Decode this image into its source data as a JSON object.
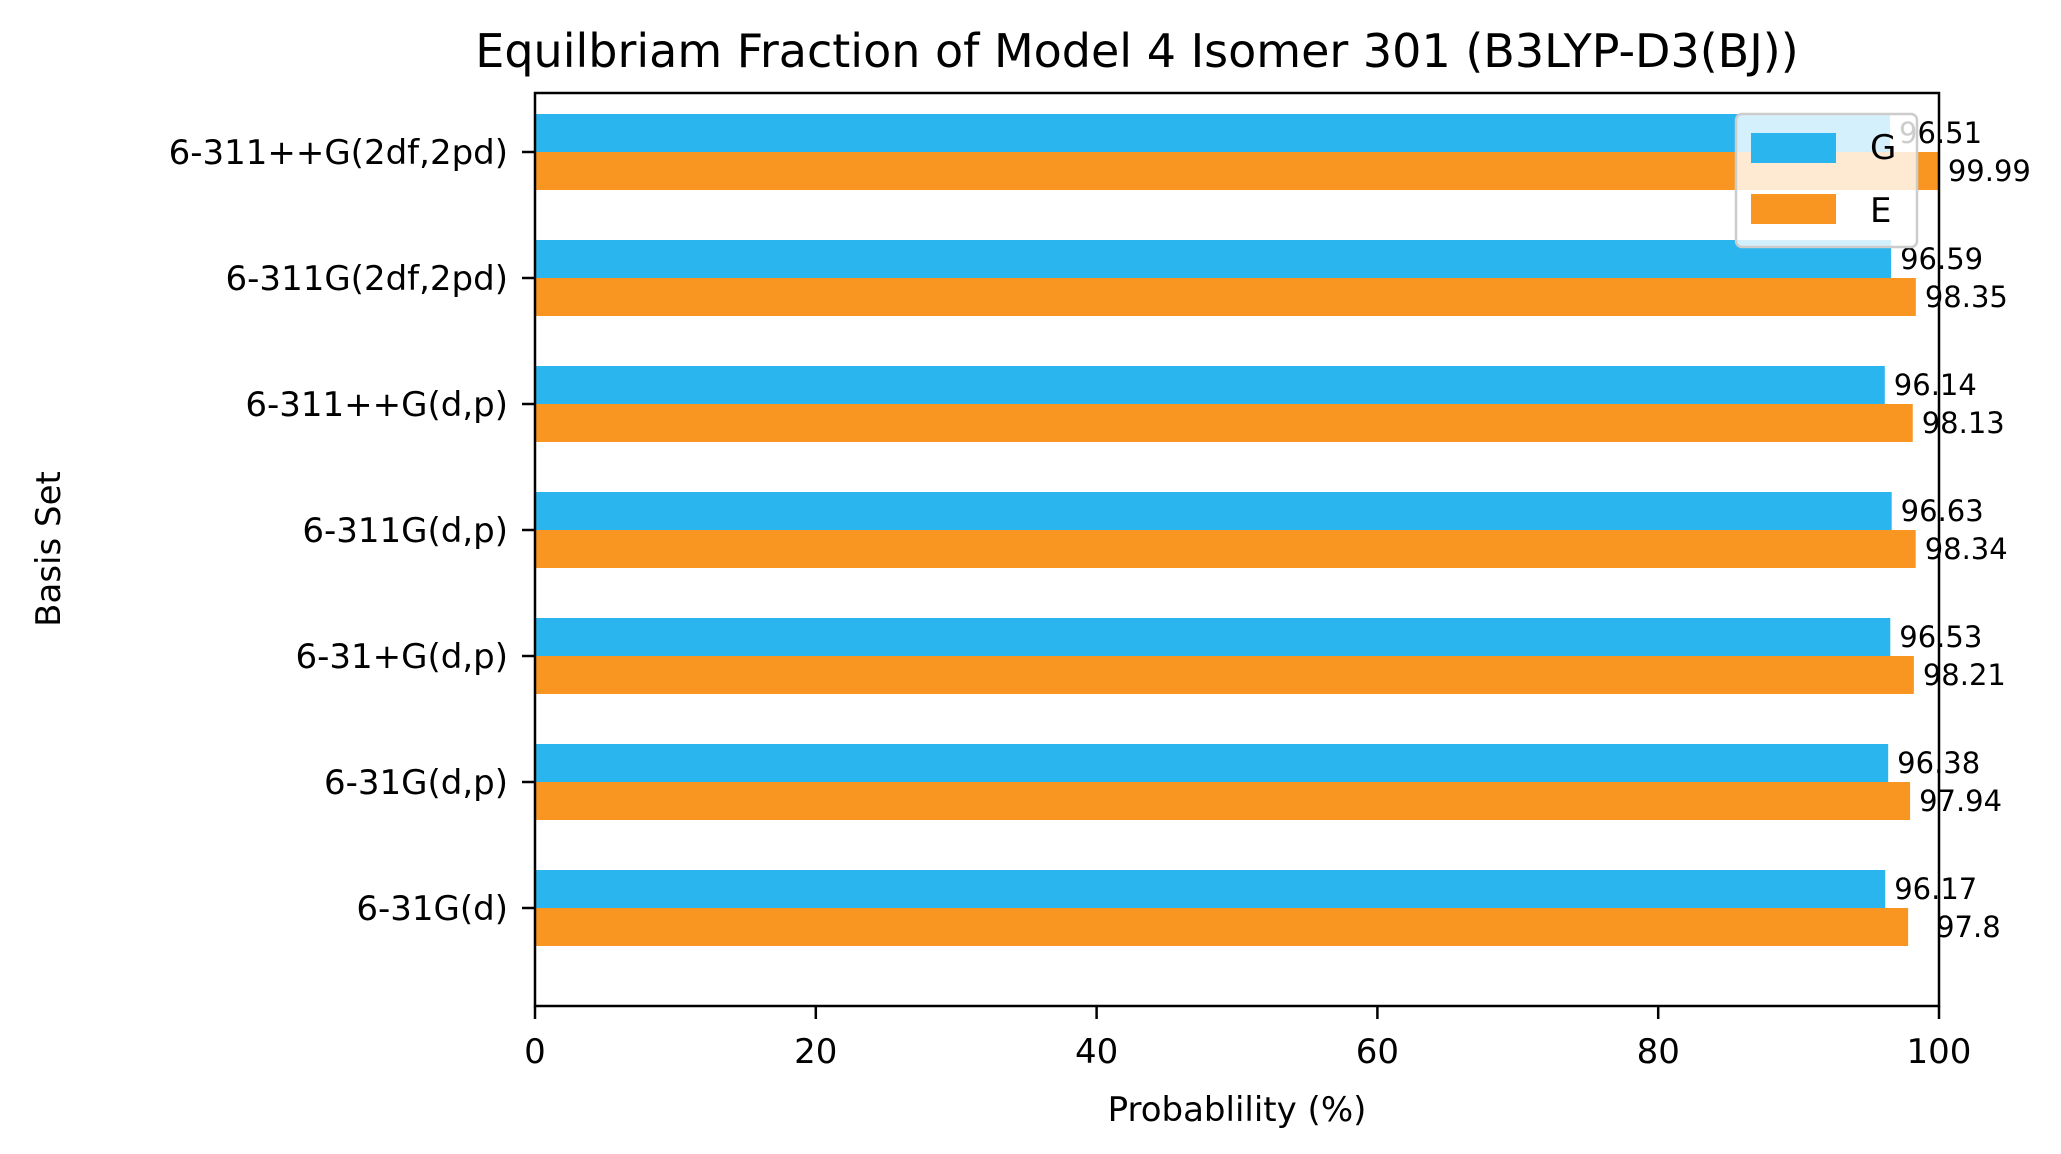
{
  "chart_data": {
    "type": "bar",
    "orientation": "horizontal",
    "title": "Equilbriam Fraction of Model 4 Isomer 301 (B3LYP-D3(BJ))",
    "xlabel": "Probablility (%)",
    "ylabel": "Basis Set",
    "xlim": [
      0,
      100
    ],
    "xticks": [
      "0",
      "20",
      "40",
      "60",
      "80",
      "100"
    ],
    "categories": [
      "6-31G(d)",
      "6-31G(d,p)",
      "6-31+G(d,p)",
      "6-311G(d,p)",
      "6-311++G(d,p)",
      "6-311G(2df,2pd)",
      "6-311++G(2df,2pd)"
    ],
    "series": [
      {
        "name": "G",
        "color": "#2bb5ef",
        "values": [
          96.17,
          96.38,
          96.53,
          96.63,
          96.14,
          96.59,
          96.51
        ],
        "labels": [
          "96.17",
          "96.38",
          "96.53",
          "96.63",
          "96.14",
          "96.59",
          "96.51"
        ]
      },
      {
        "name": "E",
        "color": "#f99621",
        "values": [
          97.8,
          97.94,
          98.21,
          98.34,
          98.13,
          98.35,
          99.99
        ],
        "labels": [
          "97.8",
          "97.94",
          "98.21",
          "98.34",
          "98.13",
          "98.35",
          "99.99"
        ]
      }
    ],
    "grid": false,
    "legend_position": "top-right"
  }
}
